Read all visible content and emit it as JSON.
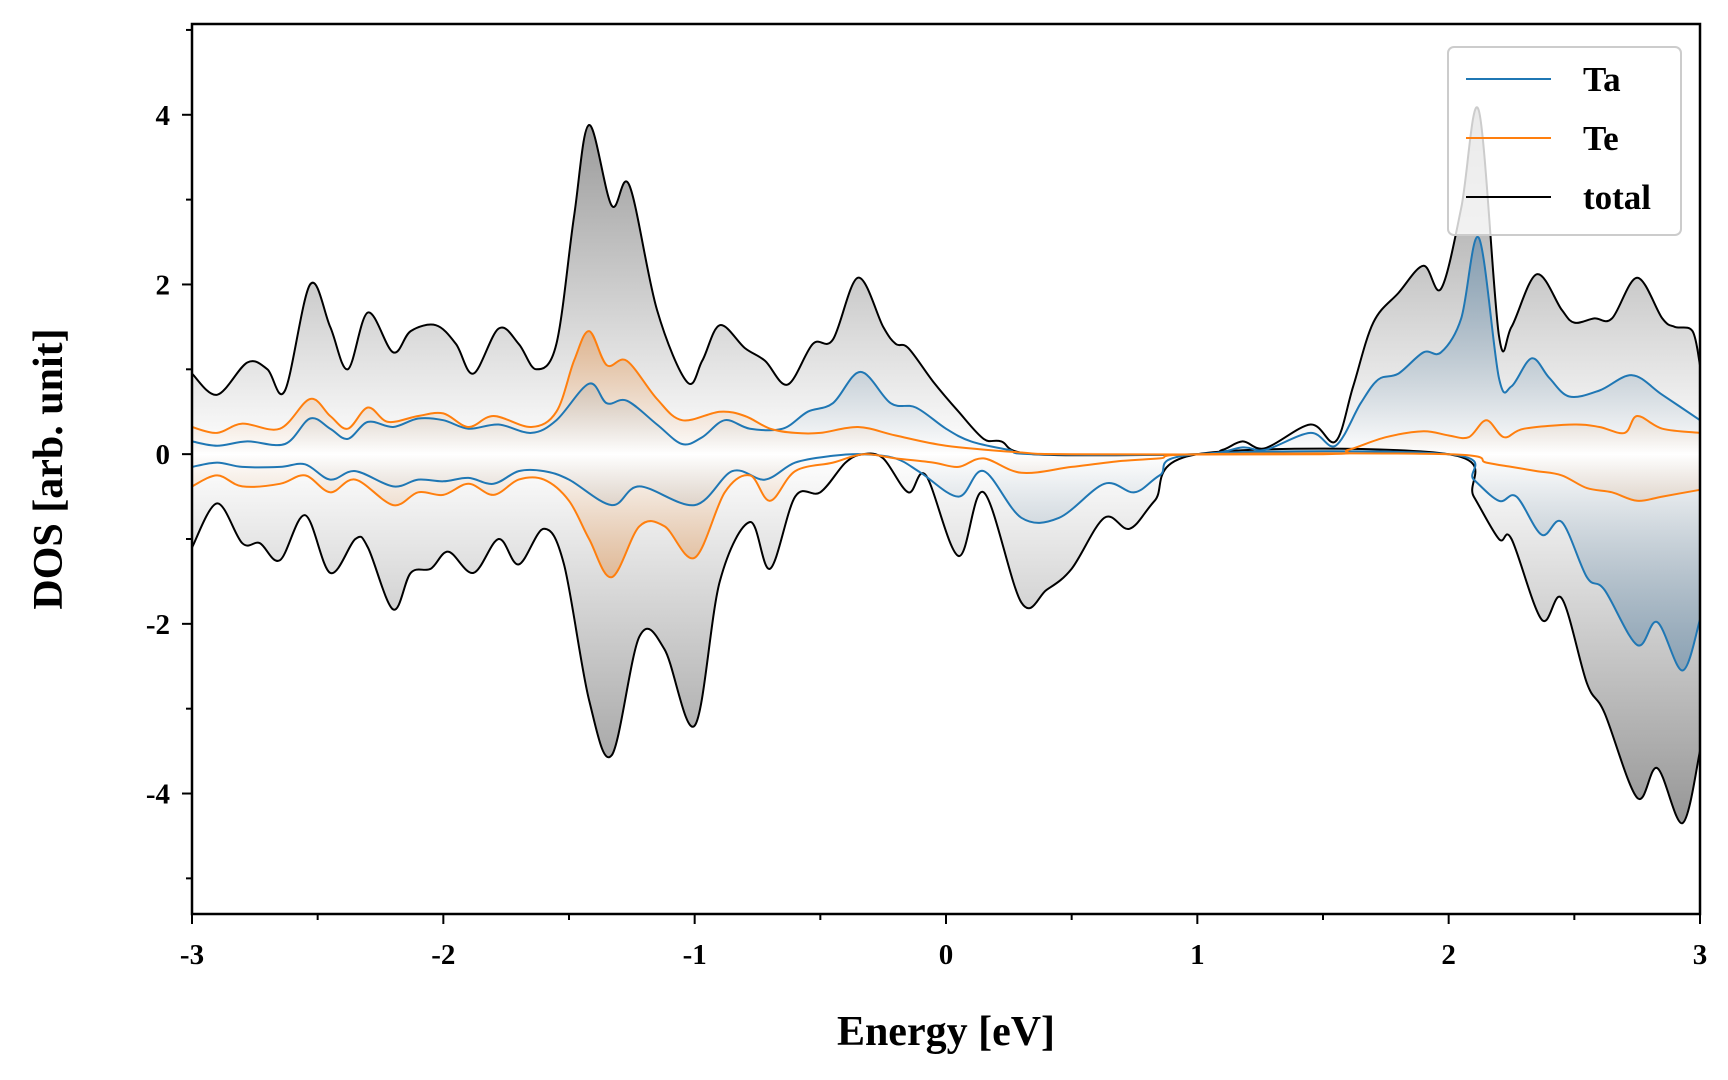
{
  "chart_data": {
    "type": "line",
    "title": "",
    "xlabel": "Energy [eV]",
    "ylabel": "DOS [arb. unit]",
    "xlim": [
      -3,
      3
    ],
    "ylim": [
      -5.42,
      5.07
    ],
    "xticks": [
      -3,
      -2,
      -1,
      0,
      1,
      2,
      3
    ],
    "xtick_labels": [
      "-3",
      "-2",
      "-1",
      "0",
      "1",
      "2",
      "3"
    ],
    "yticks": [
      -4,
      -2,
      0,
      2,
      4
    ],
    "ytick_labels": [
      "-4",
      "-2",
      "0",
      "2",
      "4"
    ],
    "grid": false,
    "legend_position": "top-right",
    "series": [
      {
        "name": "Ta",
        "color": "#1f77b4",
        "fill": "#5b86a8",
        "up": [
          [
            -3,
            0.15
          ],
          [
            -2.9,
            0.1
          ],
          [
            -2.78,
            0.15
          ],
          [
            -2.63,
            0.12
          ],
          [
            -2.53,
            0.42
          ],
          [
            -2.45,
            0.3
          ],
          [
            -2.38,
            0.18
          ],
          [
            -2.3,
            0.38
          ],
          [
            -2.2,
            0.32
          ],
          [
            -2.1,
            0.42
          ],
          [
            -2.0,
            0.4
          ],
          [
            -1.9,
            0.3
          ],
          [
            -1.78,
            0.35
          ],
          [
            -1.65,
            0.25
          ],
          [
            -1.55,
            0.4
          ],
          [
            -1.42,
            0.83
          ],
          [
            -1.35,
            0.6
          ],
          [
            -1.27,
            0.63
          ],
          [
            -1.15,
            0.35
          ],
          [
            -1.05,
            0.12
          ],
          [
            -0.97,
            0.2
          ],
          [
            -0.88,
            0.4
          ],
          [
            -0.78,
            0.3
          ],
          [
            -0.65,
            0.3
          ],
          [
            -0.55,
            0.5
          ],
          [
            -0.45,
            0.6
          ],
          [
            -0.34,
            0.97
          ],
          [
            -0.22,
            0.6
          ],
          [
            -0.12,
            0.55
          ],
          [
            0.0,
            0.3
          ],
          [
            0.1,
            0.15
          ],
          [
            0.25,
            0.05
          ],
          [
            0.35,
            0.0
          ],
          [
            1.0,
            0.0
          ],
          [
            1.18,
            0.08
          ],
          [
            1.27,
            0.05
          ],
          [
            1.45,
            0.25
          ],
          [
            1.55,
            0.1
          ],
          [
            1.65,
            0.6
          ],
          [
            1.72,
            0.88
          ],
          [
            1.8,
            0.95
          ],
          [
            1.9,
            1.2
          ],
          [
            1.97,
            1.2
          ],
          [
            2.05,
            1.6
          ],
          [
            2.12,
            2.55
          ],
          [
            2.2,
            0.9
          ],
          [
            2.25,
            0.8
          ],
          [
            2.33,
            1.13
          ],
          [
            2.4,
            0.9
          ],
          [
            2.48,
            0.68
          ],
          [
            2.6,
            0.75
          ],
          [
            2.73,
            0.93
          ],
          [
            2.85,
            0.7
          ],
          [
            3.0,
            0.4
          ]
        ],
        "down": [
          [
            -3,
            -0.15
          ],
          [
            -2.9,
            -0.1
          ],
          [
            -2.8,
            -0.15
          ],
          [
            -2.65,
            -0.15
          ],
          [
            -2.55,
            -0.12
          ],
          [
            -2.45,
            -0.3
          ],
          [
            -2.35,
            -0.2
          ],
          [
            -2.2,
            -0.38
          ],
          [
            -2.1,
            -0.3
          ],
          [
            -2.0,
            -0.32
          ],
          [
            -1.9,
            -0.28
          ],
          [
            -1.8,
            -0.35
          ],
          [
            -1.7,
            -0.2
          ],
          [
            -1.6,
            -0.2
          ],
          [
            -1.5,
            -0.3
          ],
          [
            -1.33,
            -0.6
          ],
          [
            -1.22,
            -0.38
          ],
          [
            -1.0,
            -0.6
          ],
          [
            -0.85,
            -0.2
          ],
          [
            -0.72,
            -0.3
          ],
          [
            -0.6,
            -0.1
          ],
          [
            -0.45,
            -0.02
          ],
          [
            -0.33,
            0.0
          ],
          [
            -0.2,
            -0.05
          ],
          [
            -0.1,
            -0.22
          ],
          [
            0.05,
            -0.5
          ],
          [
            0.15,
            -0.2
          ],
          [
            0.3,
            -0.75
          ],
          [
            0.45,
            -0.75
          ],
          [
            0.63,
            -0.35
          ],
          [
            0.75,
            -0.45
          ],
          [
            0.85,
            -0.25
          ],
          [
            1.0,
            0.0
          ],
          [
            2.0,
            0.0
          ],
          [
            2.1,
            -0.3
          ],
          [
            2.2,
            -0.55
          ],
          [
            2.27,
            -0.5
          ],
          [
            2.37,
            -0.95
          ],
          [
            2.45,
            -0.8
          ],
          [
            2.55,
            -1.45
          ],
          [
            2.62,
            -1.6
          ],
          [
            2.75,
            -2.25
          ],
          [
            2.83,
            -1.98
          ],
          [
            2.93,
            -2.55
          ],
          [
            3.0,
            -1.95
          ]
        ]
      },
      {
        "name": "Te",
        "color": "#ff7f0e",
        "fill": "#e8750f",
        "up": [
          [
            -3,
            0.32
          ],
          [
            -2.9,
            0.25
          ],
          [
            -2.8,
            0.36
          ],
          [
            -2.65,
            0.3
          ],
          [
            -2.53,
            0.65
          ],
          [
            -2.45,
            0.45
          ],
          [
            -2.38,
            0.3
          ],
          [
            -2.3,
            0.55
          ],
          [
            -2.22,
            0.38
          ],
          [
            -2.1,
            0.45
          ],
          [
            -2.0,
            0.48
          ],
          [
            -1.9,
            0.32
          ],
          [
            -1.8,
            0.45
          ],
          [
            -1.65,
            0.32
          ],
          [
            -1.55,
            0.5
          ],
          [
            -1.48,
            1.1
          ],
          [
            -1.42,
            1.45
          ],
          [
            -1.35,
            1.05
          ],
          [
            -1.27,
            1.1
          ],
          [
            -1.15,
            0.65
          ],
          [
            -1.05,
            0.4
          ],
          [
            -0.9,
            0.5
          ],
          [
            -0.8,
            0.45
          ],
          [
            -0.7,
            0.3
          ],
          [
            -0.6,
            0.25
          ],
          [
            -0.5,
            0.25
          ],
          [
            -0.35,
            0.32
          ],
          [
            -0.2,
            0.22
          ],
          [
            0.0,
            0.1
          ],
          [
            0.3,
            0.02
          ],
          [
            0.5,
            0.0
          ],
          [
            1.5,
            0.0
          ],
          [
            1.6,
            0.05
          ],
          [
            1.75,
            0.2
          ],
          [
            1.9,
            0.27
          ],
          [
            2.0,
            0.22
          ],
          [
            2.08,
            0.2
          ],
          [
            2.15,
            0.4
          ],
          [
            2.22,
            0.2
          ],
          [
            2.3,
            0.3
          ],
          [
            2.5,
            0.35
          ],
          [
            2.6,
            0.32
          ],
          [
            2.7,
            0.25
          ],
          [
            2.75,
            0.45
          ],
          [
            2.85,
            0.3
          ],
          [
            3.0,
            0.25
          ]
        ],
        "down": [
          [
            -3,
            -0.38
          ],
          [
            -2.9,
            -0.25
          ],
          [
            -2.8,
            -0.38
          ],
          [
            -2.65,
            -0.35
          ],
          [
            -2.55,
            -0.25
          ],
          [
            -2.45,
            -0.45
          ],
          [
            -2.35,
            -0.3
          ],
          [
            -2.2,
            -0.6
          ],
          [
            -2.1,
            -0.45
          ],
          [
            -2.0,
            -0.48
          ],
          [
            -1.9,
            -0.35
          ],
          [
            -1.8,
            -0.48
          ],
          [
            -1.7,
            -0.3
          ],
          [
            -1.6,
            -0.3
          ],
          [
            -1.5,
            -0.55
          ],
          [
            -1.42,
            -1.0
          ],
          [
            -1.33,
            -1.45
          ],
          [
            -1.22,
            -0.85
          ],
          [
            -1.12,
            -0.85
          ],
          [
            -1.0,
            -1.22
          ],
          [
            -0.88,
            -0.45
          ],
          [
            -0.78,
            -0.25
          ],
          [
            -0.7,
            -0.55
          ],
          [
            -0.6,
            -0.2
          ],
          [
            -0.45,
            -0.1
          ],
          [
            -0.33,
            0.0
          ],
          [
            -0.2,
            -0.05
          ],
          [
            -0.05,
            -0.1
          ],
          [
            0.05,
            -0.15
          ],
          [
            0.15,
            -0.05
          ],
          [
            0.3,
            -0.22
          ],
          [
            0.5,
            -0.15
          ],
          [
            0.7,
            -0.08
          ],
          [
            0.85,
            -0.05
          ],
          [
            1.0,
            0.0
          ],
          [
            2.0,
            0.0
          ],
          [
            2.15,
            -0.1
          ],
          [
            2.25,
            -0.15
          ],
          [
            2.35,
            -0.2
          ],
          [
            2.45,
            -0.25
          ],
          [
            2.55,
            -0.4
          ],
          [
            2.65,
            -0.45
          ],
          [
            2.75,
            -0.55
          ],
          [
            2.85,
            -0.5
          ],
          [
            3.0,
            -0.42
          ]
        ]
      },
      {
        "name": "total",
        "color": "#000000",
        "fill": "#8c8c8c",
        "up": [
          [
            -3,
            0.95
          ],
          [
            -2.9,
            0.7
          ],
          [
            -2.78,
            1.08
          ],
          [
            -2.7,
            1.0
          ],
          [
            -2.63,
            0.75
          ],
          [
            -2.53,
            2.0
          ],
          [
            -2.45,
            1.5
          ],
          [
            -2.38,
            1.0
          ],
          [
            -2.3,
            1.67
          ],
          [
            -2.2,
            1.2
          ],
          [
            -2.13,
            1.45
          ],
          [
            -2.03,
            1.52
          ],
          [
            -1.95,
            1.3
          ],
          [
            -1.88,
            0.95
          ],
          [
            -1.78,
            1.48
          ],
          [
            -1.7,
            1.3
          ],
          [
            -1.63,
            1.0
          ],
          [
            -1.55,
            1.3
          ],
          [
            -1.48,
            2.8
          ],
          [
            -1.42,
            3.88
          ],
          [
            -1.33,
            2.93
          ],
          [
            -1.26,
            3.17
          ],
          [
            -1.15,
            1.7
          ],
          [
            -1.03,
            0.85
          ],
          [
            -0.97,
            1.1
          ],
          [
            -0.9,
            1.52
          ],
          [
            -0.8,
            1.25
          ],
          [
            -0.72,
            1.1
          ],
          [
            -0.63,
            0.82
          ],
          [
            -0.53,
            1.3
          ],
          [
            -0.45,
            1.35
          ],
          [
            -0.35,
            2.08
          ],
          [
            -0.25,
            1.5
          ],
          [
            -0.2,
            1.3
          ],
          [
            -0.15,
            1.25
          ],
          [
            -0.05,
            0.85
          ],
          [
            0.05,
            0.5
          ],
          [
            0.15,
            0.18
          ],
          [
            0.22,
            0.15
          ],
          [
            0.35,
            0.0
          ],
          [
            1.0,
            0.0
          ],
          [
            1.1,
            0.05
          ],
          [
            1.18,
            0.15
          ],
          [
            1.27,
            0.07
          ],
          [
            1.45,
            0.35
          ],
          [
            1.55,
            0.15
          ],
          [
            1.62,
            0.8
          ],
          [
            1.7,
            1.55
          ],
          [
            1.8,
            1.9
          ],
          [
            1.9,
            2.22
          ],
          [
            1.97,
            1.95
          ],
          [
            2.05,
            2.9
          ],
          [
            2.12,
            4.05
          ],
          [
            2.2,
            1.4
          ],
          [
            2.25,
            1.5
          ],
          [
            2.35,
            2.12
          ],
          [
            2.45,
            1.7
          ],
          [
            2.5,
            1.55
          ],
          [
            2.58,
            1.6
          ],
          [
            2.65,
            1.6
          ],
          [
            2.75,
            2.08
          ],
          [
            2.85,
            1.6
          ],
          [
            2.9,
            1.5
          ],
          [
            2.97,
            1.45
          ],
          [
            3.0,
            1.05
          ]
        ],
        "down": [
          [
            -3,
            -1.1
          ],
          [
            -2.9,
            -0.58
          ],
          [
            -2.8,
            -1.05
          ],
          [
            -2.73,
            -1.05
          ],
          [
            -2.65,
            -1.25
          ],
          [
            -2.55,
            -0.72
          ],
          [
            -2.45,
            -1.4
          ],
          [
            -2.35,
            -1.0
          ],
          [
            -2.3,
            -1.1
          ],
          [
            -2.2,
            -1.83
          ],
          [
            -2.13,
            -1.4
          ],
          [
            -2.05,
            -1.35
          ],
          [
            -1.98,
            -1.15
          ],
          [
            -1.88,
            -1.4
          ],
          [
            -1.78,
            -1.0
          ],
          [
            -1.7,
            -1.3
          ],
          [
            -1.6,
            -0.88
          ],
          [
            -1.52,
            -1.3
          ],
          [
            -1.42,
            -2.9
          ],
          [
            -1.33,
            -3.55
          ],
          [
            -1.22,
            -2.15
          ],
          [
            -1.12,
            -2.3
          ],
          [
            -1.0,
            -3.2
          ],
          [
            -0.9,
            -1.5
          ],
          [
            -0.78,
            -0.8
          ],
          [
            -0.7,
            -1.35
          ],
          [
            -0.6,
            -0.5
          ],
          [
            -0.5,
            -0.45
          ],
          [
            -0.4,
            -0.1
          ],
          [
            -0.33,
            0.0
          ],
          [
            -0.25,
            -0.05
          ],
          [
            -0.15,
            -0.45
          ],
          [
            -0.08,
            -0.25
          ],
          [
            0.05,
            -1.2
          ],
          [
            0.15,
            -0.45
          ],
          [
            0.3,
            -1.75
          ],
          [
            0.4,
            -1.6
          ],
          [
            0.5,
            -1.35
          ],
          [
            0.63,
            -0.75
          ],
          [
            0.73,
            -0.88
          ],
          [
            0.83,
            -0.55
          ],
          [
            1.0,
            0.0
          ],
          [
            2.0,
            0.0
          ],
          [
            2.1,
            -0.5
          ],
          [
            2.2,
            -1.0
          ],
          [
            2.25,
            -1.0
          ],
          [
            2.37,
            -1.95
          ],
          [
            2.45,
            -1.7
          ],
          [
            2.55,
            -2.7
          ],
          [
            2.62,
            -3.05
          ],
          [
            2.75,
            -4.05
          ],
          [
            2.83,
            -3.7
          ],
          [
            2.93,
            -4.35
          ],
          [
            3.0,
            -3.5
          ]
        ]
      }
    ]
  }
}
